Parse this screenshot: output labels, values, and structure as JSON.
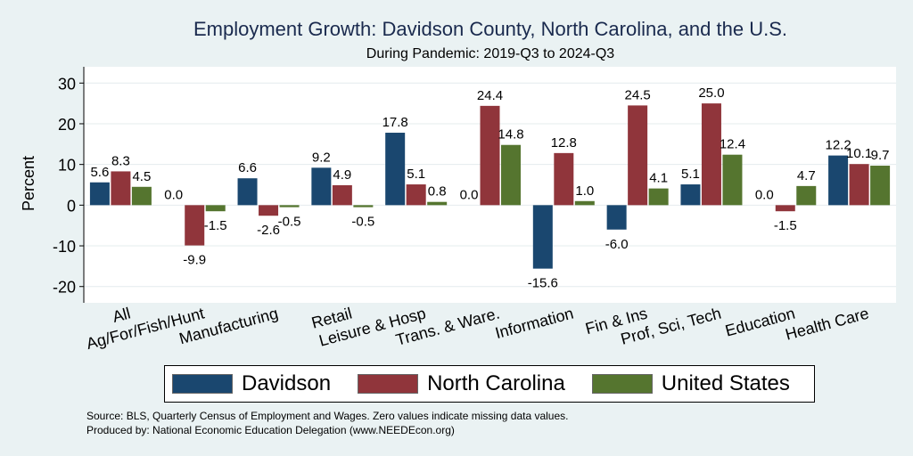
{
  "chart_data": {
    "type": "bar",
    "title": "Employment Growth: Davidson County, North Carolina, and the U.S.",
    "subtitle": "During Pandemic: 2019-Q3 to 2024-Q3",
    "xlabel": "",
    "ylabel": "Percent",
    "ylim": [
      -24,
      34
    ],
    "yticks": [
      -20,
      -10,
      0,
      10,
      20,
      30
    ],
    "grid": true,
    "legend_position": "bottom",
    "categories": [
      "All",
      "Ag/For/Fish/Hunt",
      "Manufacturing",
      "Retail",
      "Leisure & Hosp",
      "Trans. & Ware.",
      "Information",
      "Fin & Ins",
      "Prof, Sci, Tech",
      "Education",
      "Health Care"
    ],
    "series": [
      {
        "name": "Davidson",
        "color": "#1a476f",
        "values": [
          5.6,
          0.0,
          6.6,
          9.2,
          17.8,
          0.0,
          -15.6,
          -6.0,
          5.1,
          0.0,
          12.2
        ]
      },
      {
        "name": "North Carolina",
        "color": "#90353b",
        "values": [
          8.3,
          -9.9,
          -2.6,
          4.9,
          5.1,
          24.4,
          12.8,
          24.5,
          25.0,
          -1.5,
          10.1
        ]
      },
      {
        "name": "United States",
        "color": "#55752f",
        "values": [
          4.5,
          -1.5,
          -0.5,
          -0.5,
          0.8,
          14.8,
          1.0,
          4.1,
          12.4,
          4.7,
          9.7
        ]
      }
    ]
  },
  "notes": {
    "source": "Source: BLS, Quarterly Census of Employment and Wages. Zero values indicate missing data values.",
    "producer": "Produced by: National Economic Education Delegation (www.NEEDEcon.org)"
  }
}
